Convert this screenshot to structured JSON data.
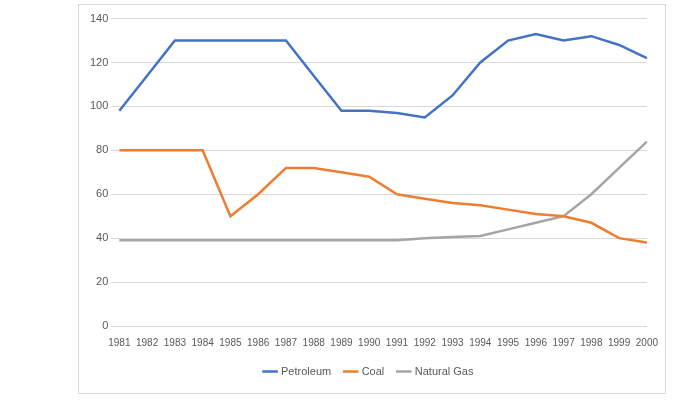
{
  "chart_data": {
    "type": "line",
    "categories": [
      "1981",
      "1982",
      "1983",
      "1984",
      "1985",
      "1986",
      "1987",
      "1988",
      "1989",
      "1990",
      "1991",
      "1992",
      "1993",
      "1994",
      "1995",
      "1996",
      "1997",
      "1998",
      "1999",
      "2000"
    ],
    "series": [
      {
        "name": "Petroleum",
        "color": "#4472c4",
        "values": [
          98,
          114,
          130,
          130,
          130,
          130,
          130,
          114,
          98,
          98,
          97,
          95,
          105,
          120,
          130,
          133,
          130,
          132,
          128,
          122
        ]
      },
      {
        "name": "Coal",
        "color": "#ed7d31",
        "values": [
          80,
          80,
          80,
          80,
          50,
          60,
          72,
          72,
          70,
          68,
          60,
          58,
          56,
          55,
          53,
          51,
          50,
          47,
          40,
          38
        ]
      },
      {
        "name": "Natural Gas",
        "color": "#a5a5a5",
        "values": [
          39,
          39,
          39,
          39,
          39,
          39,
          39,
          39,
          39,
          39,
          39,
          40,
          40.5,
          41,
          44,
          47,
          50,
          60,
          72,
          84
        ]
      }
    ],
    "ylim": [
      0,
      140
    ],
    "yticks": [
      0,
      20,
      40,
      60,
      80,
      100,
      120,
      140
    ],
    "grid": true,
    "legend": "bottom"
  }
}
